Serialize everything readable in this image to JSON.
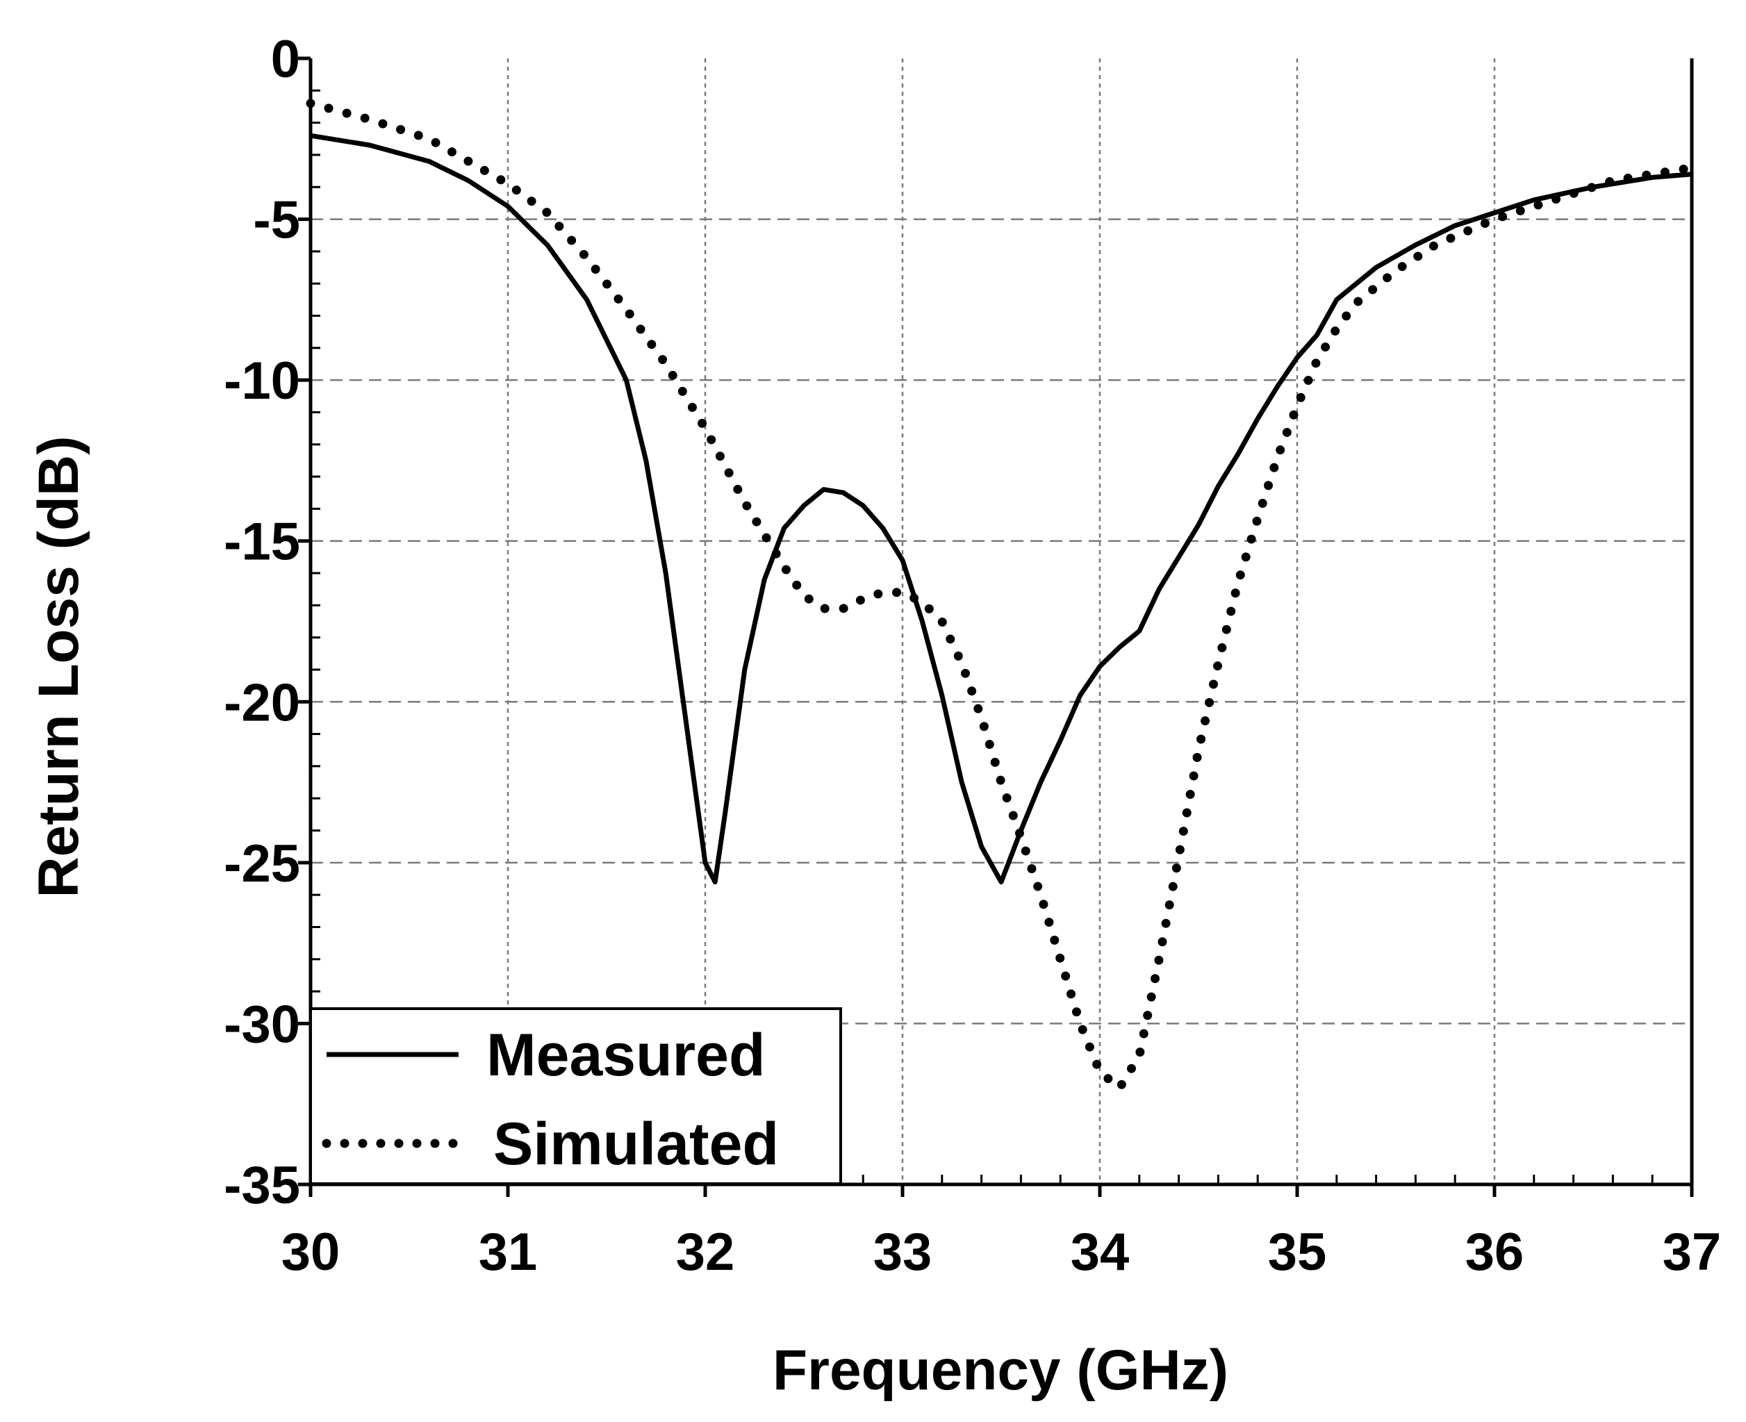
{
  "chart_data": {
    "type": "line",
    "title": "",
    "xlabel": "Frequency (GHz)",
    "ylabel": "Return Loss (dB)",
    "xlim": [
      30,
      37
    ],
    "ylim": [
      -35,
      0
    ],
    "xticks": [
      30,
      31,
      32,
      33,
      34,
      35,
      36,
      37
    ],
    "yticks": [
      0,
      -5,
      -10,
      -15,
      -20,
      -25,
      -30,
      -35
    ],
    "xtick_labels": [
      "30",
      "31",
      "32",
      "33",
      "34",
      "35",
      "36",
      "37"
    ],
    "ytick_labels": [
      "0",
      "-5",
      "-10",
      "-15",
      "-20",
      "-25",
      "-30",
      "-35"
    ],
    "grid": true,
    "legend_position": "bottom-left",
    "series": [
      {
        "name": "Measured",
        "style": "solid",
        "color": "#000000",
        "x": [
          30.0,
          30.3,
          30.6,
          30.8,
          31.0,
          31.2,
          31.4,
          31.6,
          31.7,
          31.8,
          31.9,
          32.0,
          32.05,
          32.1,
          32.2,
          32.3,
          32.4,
          32.5,
          32.6,
          32.7,
          32.8,
          32.9,
          33.0,
          33.1,
          33.2,
          33.3,
          33.4,
          33.5,
          33.6,
          33.7,
          33.8,
          33.9,
          34.0,
          34.1,
          34.2,
          34.3,
          34.4,
          34.5,
          34.6,
          34.7,
          34.8,
          34.9,
          35.0,
          35.1,
          35.2,
          35.4,
          35.6,
          35.8,
          36.0,
          36.2,
          36.5,
          36.8,
          37.0
        ],
        "y": [
          -2.4,
          -2.7,
          -3.2,
          -3.8,
          -4.6,
          -5.8,
          -7.5,
          -10.0,
          -12.5,
          -16.0,
          -20.5,
          -25.0,
          -25.6,
          -23.5,
          -19.0,
          -16.2,
          -14.6,
          -13.9,
          -13.4,
          -13.5,
          -13.9,
          -14.6,
          -15.6,
          -17.5,
          -19.8,
          -22.5,
          -24.5,
          -25.6,
          -24.0,
          -22.5,
          -21.2,
          -19.8,
          -18.9,
          -18.3,
          -17.8,
          -16.5,
          -15.5,
          -14.5,
          -13.3,
          -12.3,
          -11.2,
          -10.2,
          -9.3,
          -8.6,
          -7.5,
          -6.5,
          -5.8,
          -5.2,
          -4.8,
          -4.4,
          -4.0,
          -3.7,
          -3.6
        ]
      },
      {
        "name": "Simulated",
        "style": "dotted",
        "color": "#000000",
        "x": [
          30.0,
          30.3,
          30.6,
          30.8,
          31.0,
          31.2,
          31.4,
          31.6,
          31.8,
          32.0,
          32.2,
          32.4,
          32.5,
          32.6,
          32.7,
          32.8,
          32.9,
          33.0,
          33.1,
          33.2,
          33.3,
          33.4,
          33.5,
          33.6,
          33.7,
          33.8,
          33.9,
          34.0,
          34.1,
          34.2,
          34.3,
          34.4,
          34.5,
          34.6,
          34.7,
          34.8,
          34.9,
          35.0,
          35.1,
          35.2,
          35.3,
          35.5,
          35.7,
          36.0,
          36.3,
          36.6,
          37.0
        ],
        "y": [
          -1.4,
          -1.9,
          -2.5,
          -3.2,
          -3.9,
          -4.8,
          -6.2,
          -7.8,
          -9.5,
          -11.5,
          -13.8,
          -15.8,
          -16.7,
          -17.1,
          -17.1,
          -16.8,
          -16.6,
          -16.6,
          -16.9,
          -17.5,
          -18.8,
          -20.5,
          -22.5,
          -24.2,
          -26.0,
          -28.0,
          -30.0,
          -31.5,
          -32.0,
          -31.0,
          -28.0,
          -24.8,
          -21.5,
          -18.8,
          -16.3,
          -14.3,
          -12.4,
          -10.8,
          -9.4,
          -8.4,
          -7.6,
          -6.6,
          -5.8,
          -5.0,
          -4.4,
          -3.8,
          -3.4
        ]
      }
    ]
  }
}
